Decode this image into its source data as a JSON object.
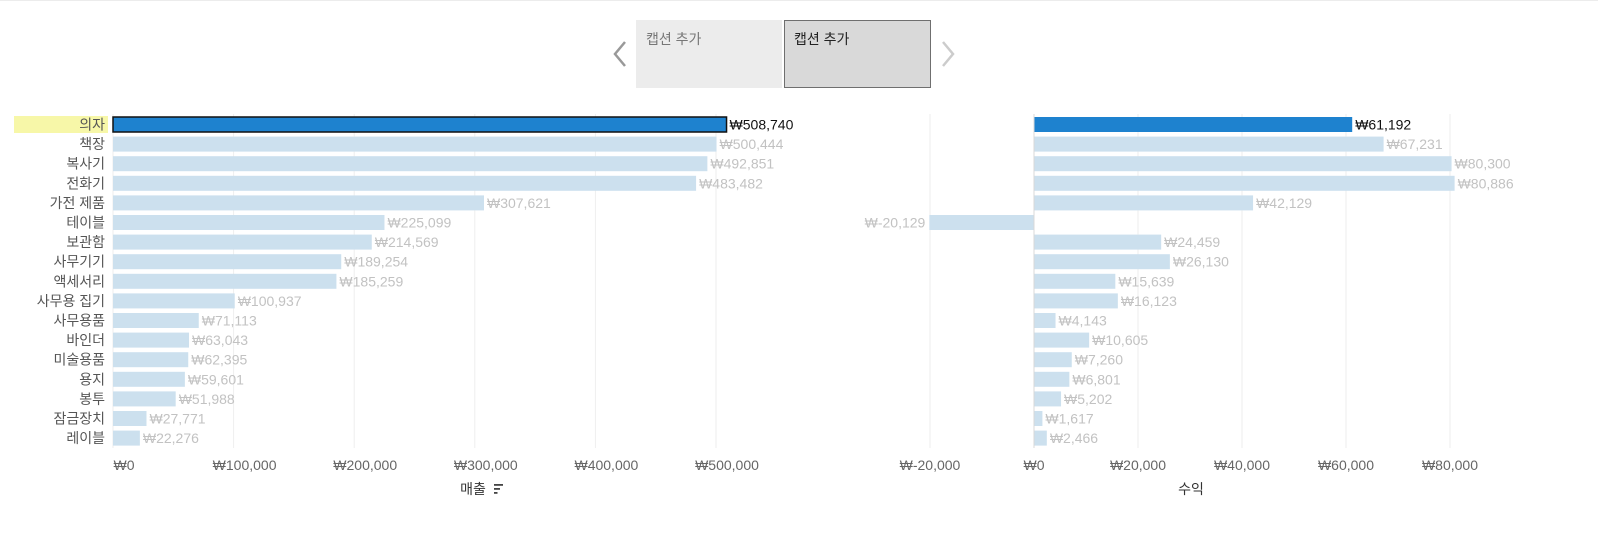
{
  "caption_cards": [
    {
      "label": "캡션 추가"
    },
    {
      "label": "캡션 추가"
    }
  ],
  "colors": {
    "selected_bar": "#1e82cf",
    "bar": "#cce0ee",
    "selected_label_bg": "#f7f7a8",
    "label_text": "#555555",
    "value_text": "#c2c2c2",
    "value_text_selected": "#111111",
    "gridline": "#eeeeee"
  },
  "chart_data": [
    {
      "type": "bar",
      "orientation": "horizontal",
      "xlabel": "매출",
      "sort_icon": "sort-descending-icon",
      "xlim": [
        0,
        500000
      ],
      "tick_values": [
        0,
        100000,
        200000,
        300000,
        400000,
        500000
      ],
      "tick_labels": [
        "₩0",
        "₩100,000",
        "₩200,000",
        "₩300,000",
        "₩400,000",
        "₩500,000"
      ],
      "selected_index": 0,
      "categories": [
        "의자",
        "책장",
        "복사기",
        "전화기",
        "가전 제품",
        "테이블",
        "보관함",
        "사무기기",
        "액세서리",
        "사무용 집기",
        "사무용품",
        "바인더",
        "미술용품",
        "용지",
        "봉투",
        "잠금장치",
        "레이블"
      ],
      "values": [
        508740,
        500444,
        492851,
        483482,
        307621,
        225099,
        214569,
        189254,
        185259,
        100937,
        71113,
        63043,
        62395,
        59601,
        51988,
        27771,
        22276
      ],
      "value_labels": [
        "₩508,740",
        "₩500,444",
        "₩492,851",
        "₩483,482",
        "₩307,621",
        "₩225,099",
        "₩214,569",
        "₩189,254",
        "₩185,259",
        "₩100,937",
        "₩71,113",
        "₩63,043",
        "₩62,395",
        "₩59,601",
        "₩51,988",
        "₩27,771",
        "₩22,276"
      ]
    },
    {
      "type": "bar",
      "orientation": "horizontal",
      "xlabel": "수익",
      "xlim": [
        -20000,
        80000
      ],
      "tick_values": [
        -20000,
        0,
        20000,
        40000,
        60000,
        80000
      ],
      "tick_labels": [
        "₩-20,000",
        "₩0",
        "₩20,000",
        "₩40,000",
        "₩60,000",
        "₩80,000"
      ],
      "selected_index": 0,
      "values": [
        61192,
        67231,
        80300,
        80886,
        42129,
        -20129,
        24459,
        26130,
        15639,
        16123,
        4143,
        10605,
        7260,
        6801,
        5202,
        1617,
        2466
      ],
      "value_labels": [
        "₩61,192",
        "₩67,231",
        "₩80,300",
        "₩80,886",
        "₩42,129",
        "₩-20,129",
        "₩24,459",
        "₩26,130",
        "₩15,639",
        "₩16,123",
        "₩4,143",
        "₩10,605",
        "₩7,260",
        "₩6,801",
        "₩5,202",
        "₩1,617",
        "₩2,466"
      ]
    }
  ]
}
